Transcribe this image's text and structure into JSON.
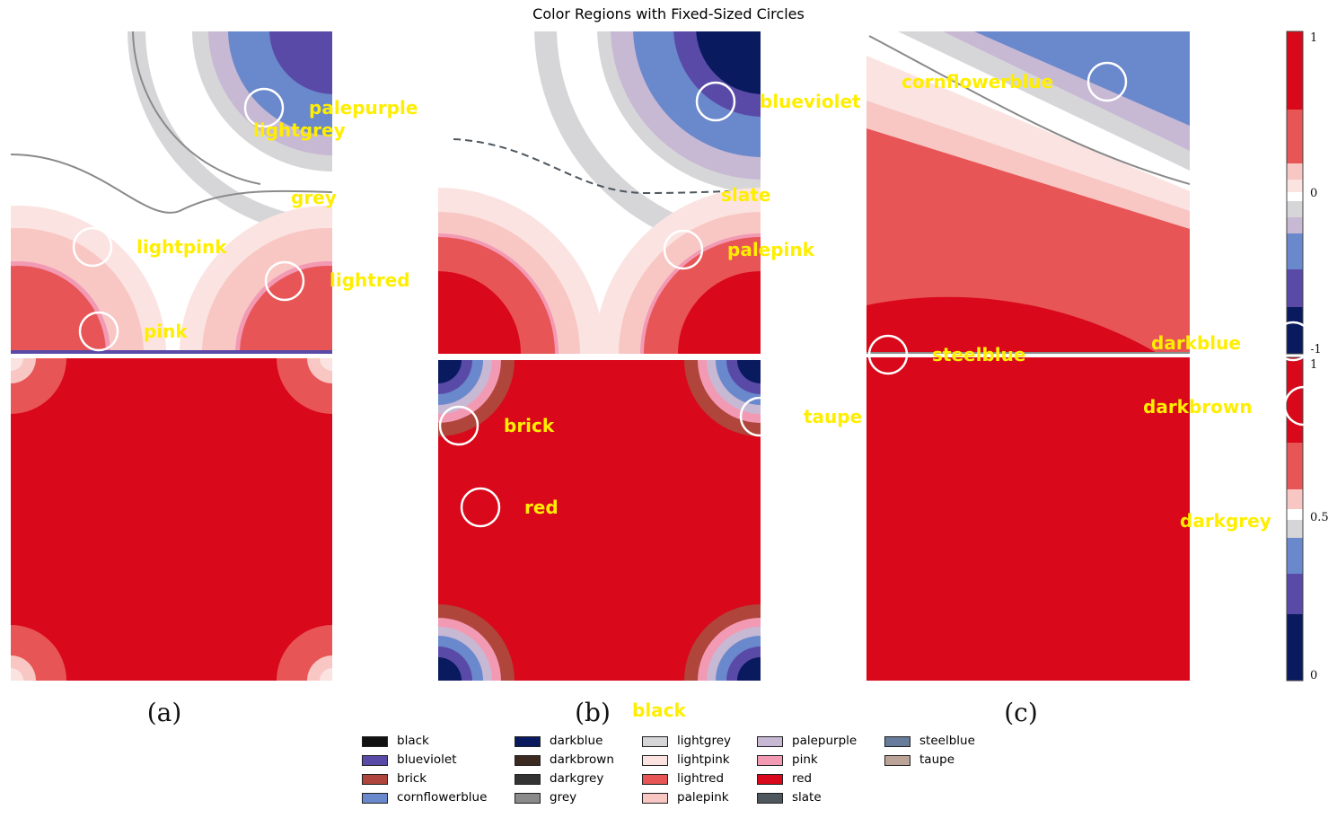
{
  "chart_data": {
    "type": "heatmap",
    "title": "Color Regions with Fixed-Sized Circles",
    "panels": [
      {
        "caption": "(a)",
        "top_field": "two-source contour map (upper half)",
        "bottom_field": "uniform red with corner rings"
      },
      {
        "caption": "(b)",
        "top_field": "two-source contour map with dark blue core",
        "bottom_field": "red with blue corner rings"
      },
      {
        "caption": "(c)",
        "top_field": "diagonal gradient contour map",
        "bottom_field": "uniform red"
      }
    ],
    "colorbar_upper": {
      "ticks": [
        "1",
        "0",
        "-1"
      ],
      "range": [
        -1,
        1
      ]
    },
    "colorbar_lower": {
      "ticks": [
        "1",
        "0.5",
        "0"
      ],
      "range": [
        0,
        1
      ]
    },
    "annotations": [
      {
        "label": "palepurple",
        "panel": "a"
      },
      {
        "label": "lightgrey",
        "panel": "a"
      },
      {
        "label": "grey",
        "panel": "a"
      },
      {
        "label": "lightpink",
        "panel": "a"
      },
      {
        "label": "lightred",
        "panel": "a"
      },
      {
        "label": "pink",
        "panel": "a"
      },
      {
        "label": "blueviolet",
        "panel": "b"
      },
      {
        "label": "slate",
        "panel": "b"
      },
      {
        "label": "palepink",
        "panel": "b"
      },
      {
        "label": "brick",
        "panel": "b"
      },
      {
        "label": "red",
        "panel": "b"
      },
      {
        "label": "taupe",
        "panel": "b"
      },
      {
        "label": "black",
        "panel": "b"
      },
      {
        "label": "cornflowerblue",
        "panel": "c"
      },
      {
        "label": "steelblue",
        "panel": "c"
      },
      {
        "label": "darkblue",
        "panel": "c"
      },
      {
        "label": "darkbrown",
        "panel": "c"
      },
      {
        "label": "darkgrey",
        "panel": "c"
      }
    ],
    "legend": [
      {
        "name": "black",
        "color": "#111111"
      },
      {
        "name": "blueviolet",
        "color": "#5a4aa8"
      },
      {
        "name": "brick",
        "color": "#b0453b"
      },
      {
        "name": "cornflowerblue",
        "color": "#6a88cc"
      },
      {
        "name": "darkblue",
        "color": "#0a1a5e"
      },
      {
        "name": "darkbrown",
        "color": "#3a2a22"
      },
      {
        "name": "darkgrey",
        "color": "#333333"
      },
      {
        "name": "grey",
        "color": "#8a8a8a"
      },
      {
        "name": "lightgrey",
        "color": "#d6d6d8"
      },
      {
        "name": "lightpink",
        "color": "#fbe3e1"
      },
      {
        "name": "lightred",
        "color": "#e85556"
      },
      {
        "name": "palepink",
        "color": "#f8c7c4"
      },
      {
        "name": "palepurple",
        "color": "#c7b8d4"
      },
      {
        "name": "pink",
        "color": "#f29ab4"
      },
      {
        "name": "red",
        "color": "#d9081a"
      },
      {
        "name": "slate",
        "color": "#4e575e"
      },
      {
        "name": "steelblue",
        "color": "#677b9b"
      },
      {
        "name": "taupe",
        "color": "#bba497"
      }
    ],
    "annotation_color": "#ffee00",
    "circle_color": "#ffffff"
  }
}
